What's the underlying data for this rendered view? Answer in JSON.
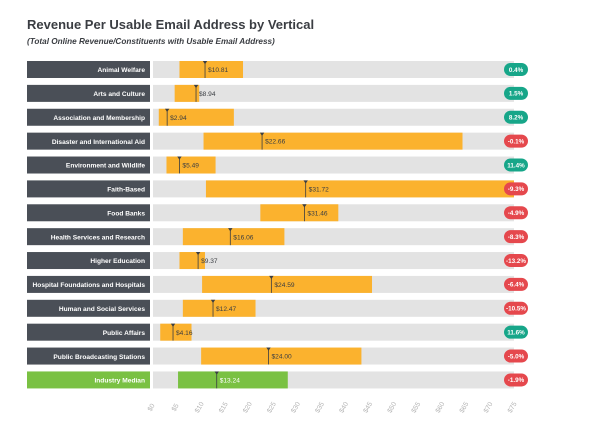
{
  "chart_data": {
    "type": "bar",
    "title": "Revenue Per Usable Email Address by Vertical",
    "subtitle": "(Total Online Revenue/Constituents with Usable Email Address)",
    "categories": [
      "Animal Welfare",
      "Arts and Culture",
      "Association and Membership",
      "Disaster and International Aid",
      "Environment and Wildlife",
      "Faith-Based",
      "Food Banks",
      "Health Services and Research",
      "Higher Education",
      "Hospital Foundations and Hospitals",
      "Human and Social Services",
      "Public Affairs",
      "Public Broadcasting Stations",
      "Industry Median"
    ],
    "series": [
      {
        "values": [
          10.81,
          8.94,
          2.94,
          22.66,
          5.49,
          31.72,
          31.46,
          16.06,
          9.37,
          24.59,
          12.47,
          4.16,
          24.0,
          13.24
        ],
        "value_labels": [
          "$10.81",
          "$8.94",
          "$2.94",
          "$22.66",
          "$5.49",
          "$31.72",
          "$31.46",
          "$16.06",
          "$9.37",
          "$24.59",
          "$12.47",
          "$4.16",
          "$24.00",
          "$13.24"
        ]
      }
    ],
    "range_low": [
      5.5,
      4.5,
      1.2,
      10.5,
      2.8,
      11.0,
      22.3,
      6.2,
      5.5,
      10.2,
      6.2,
      1.5,
      10.0,
      5.2
    ],
    "range_high": [
      18.7,
      9.6,
      16.8,
      64.3,
      13.0,
      75.0,
      38.5,
      27.3,
      10.8,
      45.5,
      21.3,
      8.0,
      43.3,
      28.0
    ],
    "change_labels": [
      "0.4%",
      "1.5%",
      "8.2%",
      "-0.1%",
      "11.4%",
      "-9.3%",
      "-4.9%",
      "-8.3%",
      "-13.2%",
      "-6.4%",
      "-10.5%",
      "11.6%",
      "-5.0%",
      "-1.9%"
    ],
    "x_ticks": [
      "$0",
      "$5",
      "$10",
      "$15",
      "$20",
      "$25",
      "$30",
      "$35",
      "$40",
      "$45",
      "$50",
      "$55",
      "$60",
      "$65",
      "$70",
      "$75"
    ],
    "xlim": [
      0,
      75
    ],
    "grid": false,
    "colors": {
      "label_bg": "#4a4f57",
      "median_label_bg": "#7ac143",
      "track": "#e3e3e3",
      "range": "#fbb22e",
      "median_range": "#7ac143",
      "positive": "#17a689",
      "negative": "#e5484d",
      "title": "#3a3d42",
      "axis_text": "#b5b5b5",
      "marker": "#3a3d42"
    }
  }
}
